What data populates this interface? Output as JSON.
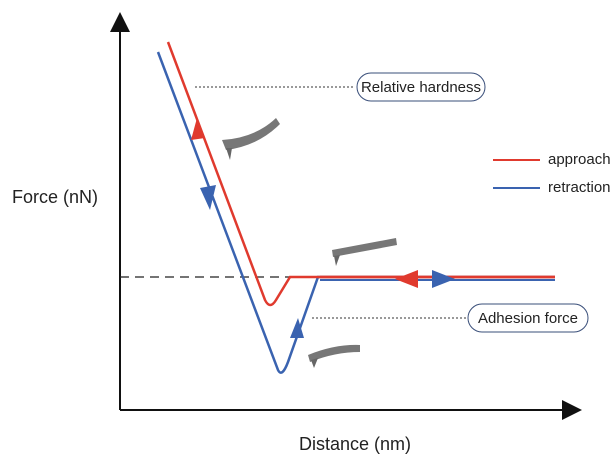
{
  "axes": {
    "y_label": "Force (nN)",
    "x_label": "Distance (nm)"
  },
  "legend": [
    {
      "name": "approach"
    },
    {
      "name": "retraction"
    }
  ],
  "annotations": {
    "hardness": "Relative hardness",
    "adhesion": "Adhesion force"
  }
}
